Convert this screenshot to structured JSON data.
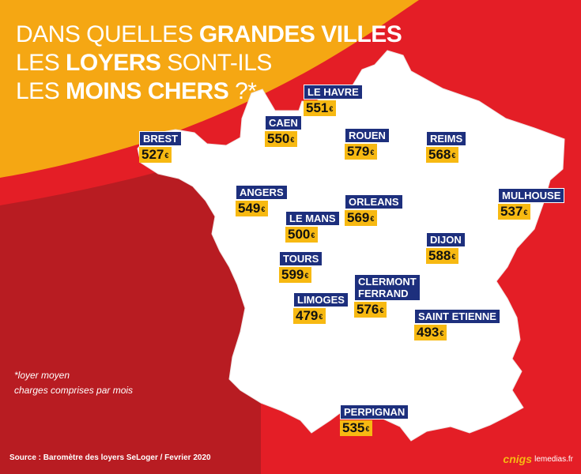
{
  "title": {
    "line1_a": "DANS QUELLES ",
    "line1_b": "GRANDES VILLES",
    "line2_a": "LES ",
    "line2_b": "LOYERS",
    "line2_c": " SONT-ILS",
    "line3_a": "LES ",
    "line3_b": "MOINS CHERS",
    "line3_c": " ?*"
  },
  "currency": "€",
  "cities": [
    {
      "name": "LE HAVRE",
      "price": "551"
    },
    {
      "name": "CAEN",
      "price": "550"
    },
    {
      "name": "BREST",
      "price": "527"
    },
    {
      "name": "ROUEN",
      "price": "579"
    },
    {
      "name": "REIMS",
      "price": "568"
    },
    {
      "name": "ANGERS",
      "price": "549"
    },
    {
      "name": "ORLEANS",
      "price": "569"
    },
    {
      "name": "MULHOUSE",
      "price": "537"
    },
    {
      "name": "LE MANS",
      "price": "500"
    },
    {
      "name": "DIJON",
      "price": "588"
    },
    {
      "name": "TOURS",
      "price": "599"
    },
    {
      "name_line1": "CLERMONT",
      "name_line2": "FERRAND",
      "price": "576"
    },
    {
      "name": "LIMOGES",
      "price": "479"
    },
    {
      "name": "SAINT ETIENNE",
      "price": "493"
    },
    {
      "name": "PERPIGNAN",
      "price": "535"
    }
  ],
  "note": {
    "line1": "*loyer moyen",
    "line2": "charges comprises par mois"
  },
  "source": "Source : Baromètre des loyers SeLoger / Fevrier 2020",
  "logo": "cnigs",
  "logo_url": "lemedias.fr",
  "colors": {
    "red": "#e41e26",
    "dark_red": "#b81c22",
    "orange": "#f5a713",
    "navy": "#1d2f7d",
    "yellow": "#f7b912"
  }
}
